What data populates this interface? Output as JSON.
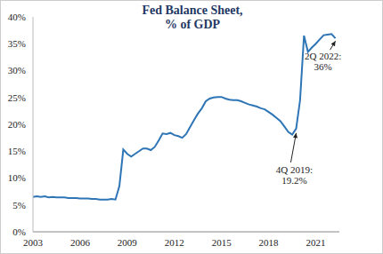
{
  "chart_data": {
    "type": "line",
    "title": "Fed Balance Sheet, % of GDP",
    "color": "#2e75b6",
    "grid": false,
    "x": [
      2003,
      2003.25,
      2003.5,
      2003.75,
      2004,
      2004.25,
      2004.5,
      2004.75,
      2005,
      2005.25,
      2005.5,
      2005.75,
      2006,
      2006.25,
      2006.5,
      2006.75,
      2007,
      2007.25,
      2007.5,
      2007.75,
      2008,
      2008.25,
      2008.5,
      2008.75,
      2009,
      2009.25,
      2009.5,
      2009.75,
      2010,
      2010.25,
      2010.5,
      2010.75,
      2011,
      2011.25,
      2011.5,
      2011.75,
      2012,
      2012.25,
      2012.5,
      2012.75,
      2013,
      2013.25,
      2013.5,
      2013.75,
      2014,
      2014.25,
      2014.5,
      2014.75,
      2015,
      2015.25,
      2015.5,
      2015.75,
      2016,
      2016.25,
      2016.5,
      2016.75,
      2017,
      2017.25,
      2017.5,
      2017.75,
      2018,
      2018.25,
      2018.5,
      2018.75,
      2019,
      2019.25,
      2019.5,
      2019.75,
      2020,
      2020.25,
      2020.5,
      2020.75,
      2021,
      2021.25,
      2021.5,
      2021.75,
      2022,
      2022.25
    ],
    "values": [
      6.5,
      6.6,
      6.5,
      6.6,
      6.4,
      6.5,
      6.4,
      6.4,
      6.4,
      6.3,
      6.3,
      6.3,
      6.2,
      6.2,
      6.2,
      6.1,
      6.1,
      6.0,
      6.0,
      6.0,
      6.1,
      6.0,
      8.5,
      15.3,
      14.5,
      14.0,
      14.5,
      15.0,
      15.5,
      15.5,
      15.2,
      15.8,
      17.0,
      18.3,
      18.2,
      18.4,
      18.0,
      17.8,
      17.5,
      18.2,
      19.5,
      20.8,
      22.0,
      23.0,
      24.3,
      24.8,
      25.0,
      25.1,
      25.1,
      24.8,
      24.6,
      24.5,
      24.5,
      24.3,
      24.0,
      23.7,
      23.5,
      23.3,
      23.0,
      22.8,
      22.3,
      21.8,
      21.2,
      20.6,
      19.6,
      18.6,
      18.1,
      19.2,
      24.5,
      36.5,
      33.5,
      34.3,
      35.0,
      35.8,
      36.6,
      36.7,
      36.8,
      36.0
    ],
    "xlim": [
      2003,
      2022.5
    ],
    "xticks": [
      2003,
      2006,
      2009,
      2012,
      2015,
      2018,
      2021
    ],
    "ylim": [
      0,
      40
    ],
    "yticks": [
      {
        "value": 0,
        "label": "0%"
      },
      {
        "value": 5,
        "label": "5%"
      },
      {
        "value": 10,
        "label": "10%"
      },
      {
        "value": 15,
        "label": "15%"
      },
      {
        "value": 20,
        "label": "20%"
      },
      {
        "value": 25,
        "label": "25%"
      },
      {
        "value": 30,
        "label": "30%"
      },
      {
        "value": 35,
        "label": "35%"
      },
      {
        "value": 40,
        "label": "40%"
      }
    ],
    "annotations": [
      {
        "x": 2019.75,
        "y": 19.2,
        "lines": [
          "4Q 2019:",
          "19.2%"
        ]
      },
      {
        "x": 2022.25,
        "y": 36,
        "lines": [
          "2Q 2022:",
          "36%"
        ]
      }
    ]
  }
}
